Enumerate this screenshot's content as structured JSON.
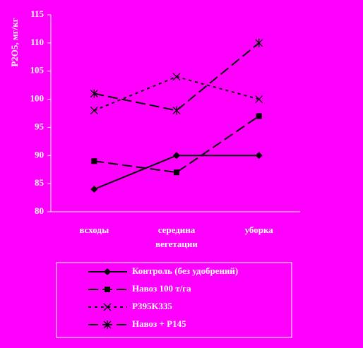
{
  "chart_data": {
    "type": "line",
    "y_label": "P2O5, мг/кг",
    "categories": [
      "всходы",
      "середина вегетации",
      "уборка"
    ],
    "series": [
      {
        "name": "Контроль (без удобрений)",
        "color": "#000000",
        "dash": "solid",
        "marker": "diamond",
        "values": [
          84,
          90,
          90
        ]
      },
      {
        "name": "Навоз 100 т/га",
        "color": "#000000",
        "dash": "long",
        "marker": "square",
        "values": [
          89,
          87,
          97
        ]
      },
      {
        "name": "P395K335",
        "color": "#000000",
        "dash": "short",
        "marker": "x",
        "values": [
          98,
          104,
          100
        ]
      },
      {
        "name": "Навоз + P145",
        "color": "#000000",
        "dash": "long",
        "marker": "star",
        "values": [
          101,
          98,
          110
        ]
      }
    ],
    "ylim": [
      80,
      115
    ],
    "yticks": [
      80,
      85,
      90,
      95,
      100,
      105,
      110,
      115
    ],
    "axis_color": "#ffffff",
    "legend": "bottom"
  }
}
